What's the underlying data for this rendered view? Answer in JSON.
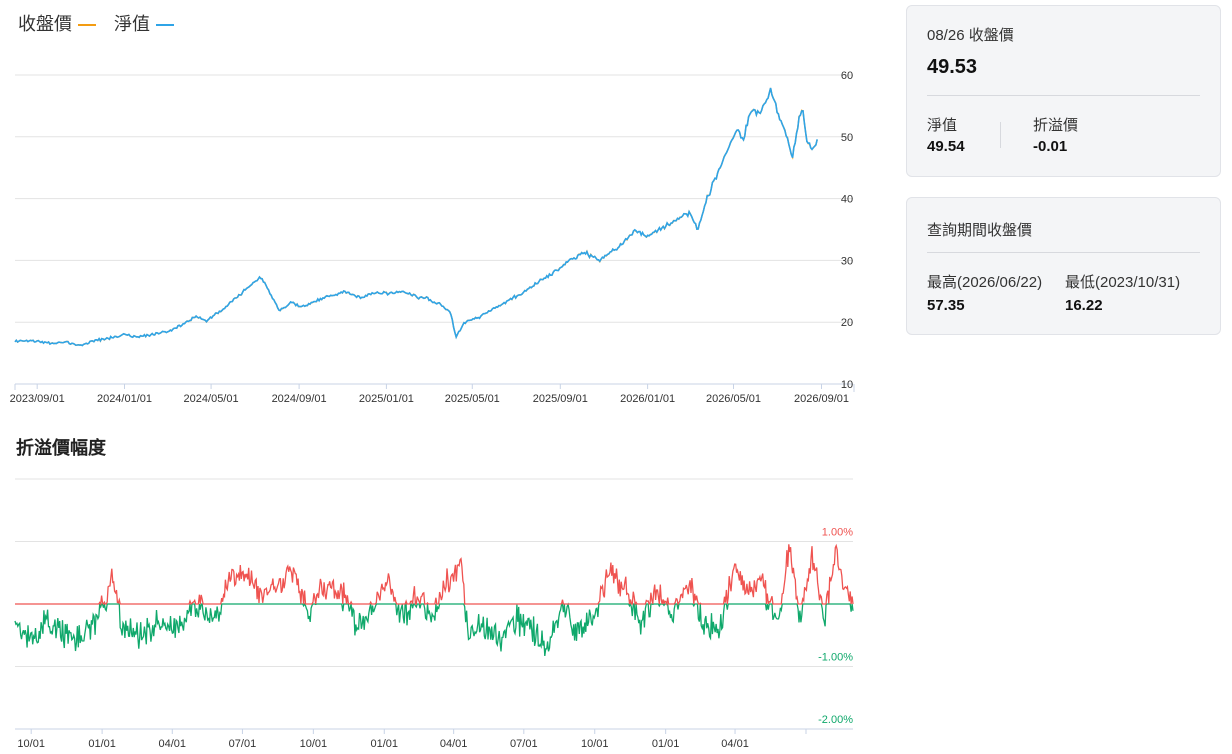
{
  "legend": {
    "close_label": "收盤價",
    "close_color": "#f39c12",
    "nav_label": "淨值",
    "nav_color": "#2fa4e7"
  },
  "premium_title": "折溢價幅度",
  "card_latest": {
    "title": "08/26 收盤價",
    "price": "49.53",
    "nav_label": "淨值",
    "nav_value": "49.54",
    "premium_label": "折溢價",
    "premium_value": "-0.01"
  },
  "card_range": {
    "title": "查詢期間收盤價",
    "high_label": "最高(2026/06/22)",
    "high_value": "57.35",
    "low_label": "最低(2023/10/31)",
    "low_value": "16.22"
  },
  "chart_data": [
    {
      "type": "line",
      "title": "",
      "series": [
        {
          "name": "收盤價",
          "color": "#f39c12"
        },
        {
          "name": "淨值",
          "color": "#2fa4e7"
        }
      ],
      "x_ticks": [
        "2023/09/01",
        "2024/01/01",
        "2024/05/01",
        "2024/09/01",
        "2025/01/01",
        "2025/05/01",
        "2025/09/01",
        "2026/01/01",
        "2026/05/01",
        "2026/09/01"
      ],
      "x_range": [
        "2023/08/01",
        "2026/10/15"
      ],
      "ylim": [
        10,
        60
      ],
      "y_ticks": [
        10,
        20,
        30,
        40,
        50,
        60
      ],
      "y_axis_side": "right",
      "grid": true,
      "points": [
        [
          "2023/08/01",
          16.9
        ],
        [
          "2023/08/20",
          17.0
        ],
        [
          "2023/09/01",
          16.9
        ],
        [
          "2023/09/20",
          16.6
        ],
        [
          "2023/10/10",
          16.8
        ],
        [
          "2023/10/31",
          16.22
        ],
        [
          "2023/11/20",
          17.0
        ],
        [
          "2023/12/15",
          17.5
        ],
        [
          "2024/01/01",
          18.0
        ],
        [
          "2024/01/20",
          17.6
        ],
        [
          "2024/02/10",
          18.0
        ],
        [
          "2024/03/01",
          18.5
        ],
        [
          "2024/03/20",
          19.5
        ],
        [
          "2024/04/10",
          21.0
        ],
        [
          "2024/04/25",
          20.2
        ],
        [
          "2024/05/10",
          21.5
        ],
        [
          "2024/06/01",
          23.5
        ],
        [
          "2024/06/20",
          25.5
        ],
        [
          "2024/07/10",
          27.3
        ],
        [
          "2024/07/25",
          24.0
        ],
        [
          "2024/08/05",
          21.8
        ],
        [
          "2024/08/20",
          23.2
        ],
        [
          "2024/09/05",
          22.4
        ],
        [
          "2024/09/25",
          23.5
        ],
        [
          "2024/10/15",
          24.3
        ],
        [
          "2024/11/05",
          25.0
        ],
        [
          "2024/11/25",
          24.0
        ],
        [
          "2024/12/15",
          24.8
        ],
        [
          "2025/01/01",
          24.6
        ],
        [
          "2025/01/20",
          25.0
        ],
        [
          "2025/02/10",
          24.2
        ],
        [
          "2025/03/01",
          23.7
        ],
        [
          "2025/03/20",
          22.6
        ],
        [
          "2025/04/01",
          21.5
        ],
        [
          "2025/04/08",
          17.5
        ],
        [
          "2025/04/20",
          20.0
        ],
        [
          "2025/05/10",
          20.8
        ],
        [
          "2025/06/01",
          22.2
        ],
        [
          "2025/06/25",
          23.8
        ],
        [
          "2025/07/15",
          25.0
        ],
        [
          "2025/08/05",
          26.8
        ],
        [
          "2025/08/25",
          28.2
        ],
        [
          "2025/09/15",
          30.0
        ],
        [
          "2025/10/05",
          31.3
        ],
        [
          "2025/10/25",
          30.0
        ],
        [
          "2025/11/10",
          31.3
        ],
        [
          "2025/11/25",
          32.5
        ],
        [
          "2025/12/15",
          34.8
        ],
        [
          "2026/01/01",
          34.0
        ],
        [
          "2026/01/20",
          35.2
        ],
        [
          "2026/02/05",
          36.0
        ],
        [
          "2026/02/20",
          37.3
        ],
        [
          "2026/03/01",
          37.6
        ],
        [
          "2026/03/12",
          35.0
        ],
        [
          "2026/03/25",
          40.0
        ],
        [
          "2026/04/10",
          44.5
        ],
        [
          "2026/04/25",
          48.5
        ],
        [
          "2026/05/05",
          51.0
        ],
        [
          "2026/05/15",
          49.5
        ],
        [
          "2026/05/25",
          54.5
        ],
        [
          "2026/06/05",
          53.5
        ],
        [
          "2026/06/22",
          57.35
        ],
        [
          "2026/07/05",
          53.0
        ],
        [
          "2026/07/15",
          50.0
        ],
        [
          "2026/07/22",
          46.0
        ],
        [
          "2026/07/30",
          52.0
        ],
        [
          "2026/08/05",
          54.6
        ],
        [
          "2026/08/12",
          49.0
        ],
        [
          "2026/08/20",
          48.0
        ],
        [
          "2026/08/26",
          49.53
        ]
      ]
    },
    {
      "type": "line",
      "title": "折溢價幅度",
      "series": [
        {
          "name": "",
          "color_positive": "#ef5350",
          "color_negative": "#0fa86b"
        }
      ],
      "x_ticks": [
        "10/01",
        "01/01",
        "04/01",
        "07/01",
        "10/01",
        "01/01",
        "04/01",
        "07/01",
        "10/01",
        "01/01",
        "04/01"
      ],
      "x_range": [
        "2023/09/10",
        "2026/09/01"
      ],
      "ylim": [
        -2.0,
        2.0
      ],
      "y_ticks": [
        "1.00%",
        "-1.00%",
        "-2.00%"
      ],
      "y_tick_values": [
        1.0,
        -1.0,
        -2.0
      ],
      "y_axis_side": "right",
      "grid": true,
      "points": [
        [
          "2023/09/10",
          -0.25
        ],
        [
          "2023/10/01",
          -0.55
        ],
        [
          "2023/10/20",
          -0.3
        ],
        [
          "2023/11/10",
          -0.45
        ],
        [
          "2023/12/01",
          -0.5
        ],
        [
          "2023/12/20",
          -0.35
        ],
        [
          "2024/01/05",
          0.05
        ],
        [
          "2024/01/15",
          0.4
        ],
        [
          "2024/01/25",
          -0.3
        ],
        [
          "2024/02/20",
          -0.5
        ],
        [
          "2024/03/15",
          -0.3
        ],
        [
          "2024/04/10",
          -0.35
        ],
        [
          "2024/05/01",
          0.0
        ],
        [
          "2024/05/25",
          -0.25
        ],
        [
          "2024/06/15",
          0.35
        ],
        [
          "2024/07/05",
          0.5
        ],
        [
          "2024/07/25",
          0.1
        ],
        [
          "2024/08/15",
          0.25
        ],
        [
          "2024/09/05",
          0.55
        ],
        [
          "2024/09/25",
          -0.1
        ],
        [
          "2024/10/15",
          0.3
        ],
        [
          "2024/11/05",
          0.2
        ],
        [
          "2024/11/25",
          -0.35
        ],
        [
          "2024/12/15",
          -0.1
        ],
        [
          "2025/01/05",
          0.35
        ],
        [
          "2025/01/25",
          -0.2
        ],
        [
          "2025/02/15",
          0.1
        ],
        [
          "2025/03/05",
          -0.25
        ],
        [
          "2025/03/25",
          0.4
        ],
        [
          "2025/04/10",
          0.7
        ],
        [
          "2025/04/20",
          -0.5
        ],
        [
          "2025/05/10",
          -0.3
        ],
        [
          "2025/06/01",
          -0.55
        ],
        [
          "2025/06/20",
          -0.2
        ],
        [
          "2025/07/10",
          -0.4
        ],
        [
          "2025/07/30",
          -0.7
        ],
        [
          "2025/08/20",
          -0.1
        ],
        [
          "2025/09/10",
          -0.45
        ],
        [
          "2025/09/30",
          -0.2
        ],
        [
          "2025/10/20",
          0.5
        ],
        [
          "2025/11/10",
          0.2
        ],
        [
          "2025/11/30",
          -0.3
        ],
        [
          "2025/12/20",
          0.25
        ],
        [
          "2026/01/10",
          -0.15
        ],
        [
          "2026/01/30",
          0.4
        ],
        [
          "2026/02/20",
          -0.3
        ],
        [
          "2026/03/10",
          -0.5
        ],
        [
          "2026/03/30",
          0.55
        ],
        [
          "2026/04/15",
          0.2
        ],
        [
          "2026/05/05",
          0.4
        ],
        [
          "2026/05/25",
          -0.35
        ],
        [
          "2026/06/10",
          0.9
        ],
        [
          "2026/06/25",
          -0.2
        ],
        [
          "2026/07/10",
          0.85
        ],
        [
          "2026/07/25",
          -0.3
        ],
        [
          "2026/08/10",
          0.9
        ],
        [
          "2026/08/20",
          0.25
        ],
        [
          "2026/09/01",
          -0.01
        ]
      ]
    }
  ]
}
